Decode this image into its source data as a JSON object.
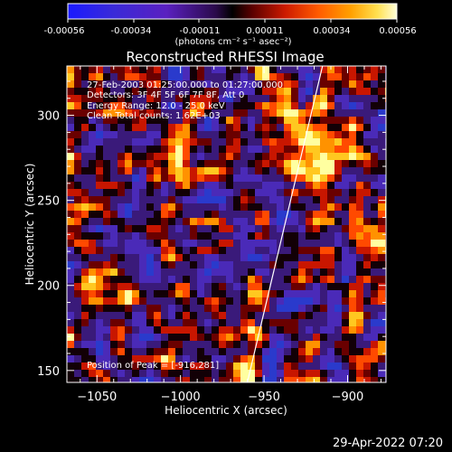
{
  "chart_data": {
    "type": "heatmap",
    "title": "Reconstructed RHESSI Image",
    "colorbar": {
      "units_html": "(photons cm⁻² s⁻¹ asec⁻²)",
      "ticks": [
        "-0.00056",
        "-0.00034",
        "-0.00011",
        "0.00011",
        "0.00034",
        "0.00056"
      ],
      "range": [
        -0.00056,
        0.00056
      ]
    },
    "xlabel": "Heliocentric X (arcsec)",
    "ylabel": "Heliocentric Y (arcsec)",
    "xlim": [
      -1068,
      -877
    ],
    "ylim": [
      143,
      329
    ],
    "xticks": [
      -1050,
      -1000,
      -950,
      -900
    ],
    "yticks": [
      150,
      200,
      250,
      300
    ],
    "annotations": {
      "time": "27-Feb-2003 01:25:00.000 to 01:27:00.000",
      "detectors": "Detectors: 3F 4F 5F 6F 7F 8F, Att 0",
      "energy": "Energy Range: 12.0 - 25.0 keV",
      "clean": "Clean     Total counts: 1.62E+03",
      "peak": "Position of Peak = [-916,281]"
    },
    "limb_line": {
      "start": [
        -960,
        143
      ],
      "end": [
        -915,
        329
      ]
    },
    "peak_position": [
      -916,
      281
    ]
  },
  "footer": {
    "date": "29-Apr-2022 07:20"
  }
}
